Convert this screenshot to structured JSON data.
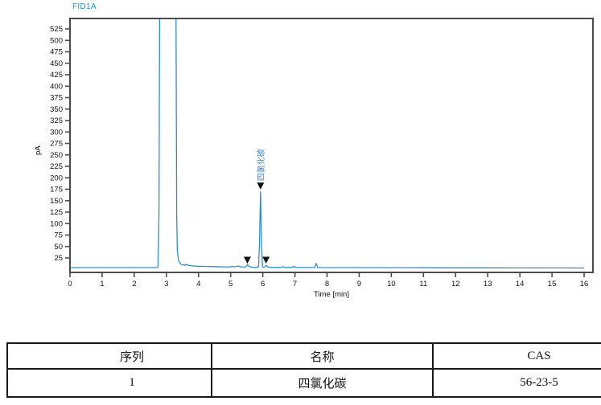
{
  "title": "FID1A",
  "colors": {
    "line": "#2e8ed0",
    "chart_title": "#1b8ed8",
    "frame": "#4b4b4b",
    "tick_text": "#111111",
    "peak_label": "#4186c6",
    "marker": "#111111",
    "table_border": "#1a1a1a"
  },
  "chart_data": {
    "type": "line",
    "title": "FID1A",
    "xlabel": "Time [min]",
    "ylabel": "pA",
    "xlim": [
      0,
      16.27
    ],
    "ylim": [
      -7,
      548
    ],
    "grid": false,
    "legend": "none",
    "xticks": [
      0,
      1,
      2,
      3,
      4,
      5,
      6,
      7,
      8,
      9,
      10,
      11,
      12,
      13,
      14,
      15,
      16
    ],
    "yticks": [
      25,
      50,
      75,
      100,
      125,
      150,
      175,
      200,
      225,
      250,
      275,
      300,
      325,
      350,
      375,
      400,
      425,
      450,
      475,
      500,
      525
    ],
    "series": [
      {
        "name": "FID1A signal",
        "points": [
          [
            0,
            4
          ],
          [
            0.5,
            4
          ],
          [
            1,
            4
          ],
          [
            1.5,
            4
          ],
          [
            2,
            4
          ],
          [
            2.5,
            4
          ],
          [
            2.7,
            4
          ],
          [
            2.74,
            6
          ],
          [
            2.77,
            120
          ],
          [
            2.79,
            548
          ],
          [
            3.3,
            548
          ],
          [
            3.32,
            120
          ],
          [
            3.34,
            40
          ],
          [
            3.37,
            22
          ],
          [
            3.41,
            15
          ],
          [
            3.46,
            11
          ],
          [
            3.52,
            9.5
          ],
          [
            3.58,
            9
          ],
          [
            3.62,
            11.5
          ],
          [
            3.66,
            9
          ],
          [
            3.72,
            8.5
          ],
          [
            3.85,
            7.5
          ],
          [
            4.0,
            7
          ],
          [
            4.2,
            6.5
          ],
          [
            4.5,
            6
          ],
          [
            4.8,
            5.5
          ],
          [
            5.0,
            5.5
          ],
          [
            5.05,
            7
          ],
          [
            5.1,
            5.5
          ],
          [
            5.25,
            7.5
          ],
          [
            5.32,
            5.5
          ],
          [
            5.42,
            5
          ],
          [
            5.48,
            6
          ],
          [
            5.52,
            11
          ],
          [
            5.58,
            6
          ],
          [
            5.68,
            4.5
          ],
          [
            5.8,
            4.5
          ],
          [
            5.87,
            6
          ],
          [
            5.9,
            60
          ],
          [
            5.93,
            170
          ],
          [
            5.96,
            60
          ],
          [
            5.99,
            6
          ],
          [
            6.03,
            4.5
          ],
          [
            6.07,
            6
          ],
          [
            6.11,
            9
          ],
          [
            6.16,
            5
          ],
          [
            6.3,
            4.3
          ],
          [
            6.55,
            4.3
          ],
          [
            6.62,
            6
          ],
          [
            6.68,
            4.3
          ],
          [
            6.9,
            4.5
          ],
          [
            6.97,
            6.5
          ],
          [
            7.03,
            4.3
          ],
          [
            7.3,
            4.2
          ],
          [
            7.62,
            4.2
          ],
          [
            7.66,
            13
          ],
          [
            7.71,
            4.2
          ],
          [
            8,
            4
          ],
          [
            9,
            3.9
          ],
          [
            10,
            3.8
          ],
          [
            11,
            3.6
          ],
          [
            12,
            3.5
          ],
          [
            13,
            3.4
          ],
          [
            14,
            3.3
          ],
          [
            15,
            3.2
          ],
          [
            16,
            3.1
          ]
        ]
      }
    ],
    "peaks": [
      {
        "name": "四氯化碳",
        "time": 5.93,
        "apex_pa": 172,
        "labeled": true
      },
      {
        "name": "",
        "time": 5.52,
        "apex_pa": 10,
        "labeled": false
      },
      {
        "name": "",
        "time": 6.1,
        "apex_pa": 10,
        "labeled": false
      }
    ]
  },
  "table": {
    "headers": [
      "序列",
      "名称",
      "CAS"
    ],
    "rows": [
      [
        "1",
        "四氯化碳",
        "56-23-5"
      ]
    ]
  }
}
